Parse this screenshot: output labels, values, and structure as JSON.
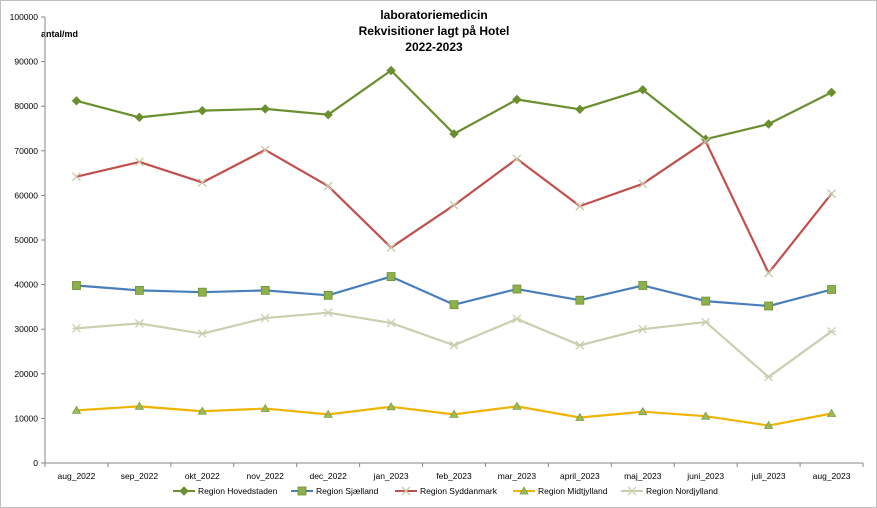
{
  "chart_data": {
    "type": "line",
    "title": [
      "laboratoriemedicin",
      "Rekvisitioner  lagt på Hotel",
      "2022-2023"
    ],
    "ylabel": "antal/md",
    "xlabel": "",
    "ylim": [
      0,
      100000
    ],
    "yticks": [
      0,
      10000,
      20000,
      30000,
      40000,
      50000,
      60000,
      70000,
      80000,
      90000,
      100000
    ],
    "grid": false,
    "legend_position": "bottom",
    "categories": [
      "aug_2022",
      "sep_2022",
      "okt_2022",
      "nov_2022",
      "dec_2022",
      "jan_2023",
      "feb_2023",
      "mar_2023",
      "april_2023",
      "maj_2023",
      "juni_2023",
      "juli_2023",
      "aug_2023"
    ],
    "series": [
      {
        "name": "Region Hovedstaden",
        "color": "#6a8f2f",
        "marker": "diamond",
        "values": [
          81200,
          77500,
          79000,
          79400,
          78100,
          88000,
          73800,
          81500,
          79300,
          83700,
          72600,
          76000,
          83100
        ]
      },
      {
        "name": "Region Sjælland",
        "color": "#4a7ebb",
        "marker": "square",
        "values": [
          39800,
          38700,
          38300,
          38700,
          37600,
          41800,
          35500,
          39000,
          36500,
          39800,
          36300,
          35200,
          38900
        ]
      },
      {
        "name": "Region Syddanmark",
        "color": "#c0504d",
        "marker": "x",
        "values": [
          64200,
          67500,
          62900,
          70200,
          62100,
          48300,
          57800,
          68200,
          57600,
          62600,
          72100,
          42600,
          60400
        ]
      },
      {
        "name": "Region Midtjylland",
        "color": "#f0b400",
        "marker": "triangle",
        "values": [
          11800,
          12700,
          11600,
          12200,
          10900,
          12600,
          10900,
          12700,
          10200,
          11500,
          10500,
          8400,
          11100
        ]
      },
      {
        "name": "Region Nordjylland",
        "color": "#c8d0b0",
        "marker": "star",
        "values": [
          30200,
          31300,
          29000,
          32500,
          33700,
          31400,
          26400,
          32300,
          26400,
          30000,
          31600,
          19300,
          29500
        ]
      }
    ]
  }
}
